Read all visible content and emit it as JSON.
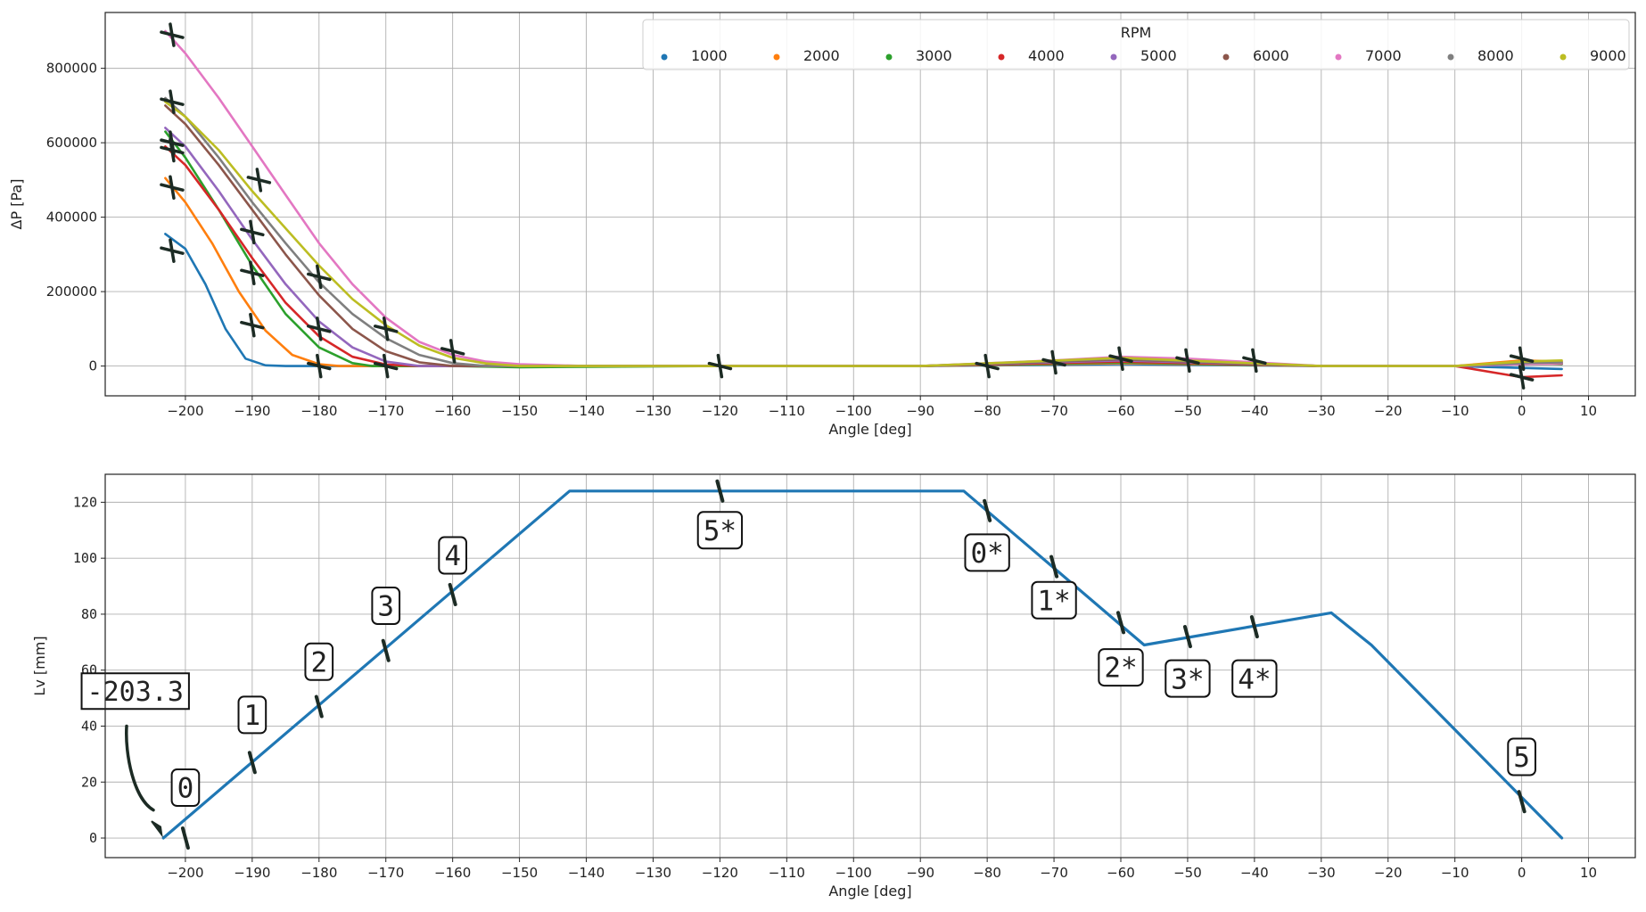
{
  "chart_data": [
    {
      "type": "line",
      "xlabel": "Angle [deg]",
      "ylabel": "ΔP [Pa]",
      "xlim": [
        -212,
        17
      ],
      "ylim": [
        -80000,
        950000
      ],
      "x_ticks": [
        -200,
        -190,
        -180,
        -170,
        -160,
        -150,
        -140,
        -130,
        -120,
        -110,
        -100,
        -90,
        -80,
        -70,
        -60,
        -50,
        -40,
        -30,
        -20,
        -10,
        0,
        10
      ],
      "x_tick_labels": [
        "−200",
        "−190",
        "−180",
        "−170",
        "−160",
        "−150",
        "−140",
        "−130",
        "−120",
        "−110",
        "−100",
        "−90",
        "−80",
        "−70",
        "−60",
        "−50",
        "−40",
        "−30",
        "−20",
        "−10",
        "0",
        "10"
      ],
      "y_ticks": [
        0,
        200000,
        400000,
        600000,
        800000
      ],
      "y_tick_labels": [
        "0",
        "200000",
        "400000",
        "600000",
        "800000"
      ],
      "grid": true,
      "legend": {
        "title": "RPM",
        "placement": "top-right"
      },
      "series": [
        {
          "name": "1000",
          "color": "#1f77b4",
          "x": [
            -203,
            -200,
            -197,
            -194,
            -191,
            -188,
            -185,
            -180,
            -150,
            -120,
            -90,
            -60,
            -30,
            -10,
            0,
            6
          ],
          "y": [
            355000,
            315000,
            220000,
            100000,
            20000,
            2000,
            0,
            0,
            0,
            0,
            0,
            5000,
            0,
            0,
            -5000,
            -8000
          ]
        },
        {
          "name": "2000",
          "color": "#ff7f0e",
          "x": [
            -203,
            -200,
            -196,
            -192,
            -188,
            -184,
            -180,
            -177,
            -170,
            -150,
            -120,
            -90,
            -60,
            -30,
            -10,
            0,
            6
          ],
          "y": [
            505000,
            440000,
            330000,
            200000,
            95000,
            30000,
            5000,
            0,
            0,
            0,
            0,
            0,
            8000,
            0,
            0,
            15000,
            12000
          ]
        },
        {
          "name": "3000",
          "color": "#2ca02c",
          "x": [
            -203,
            -200,
            -195,
            -190,
            -185,
            -180,
            -175,
            -172,
            -160,
            -150,
            -120,
            -90,
            -60,
            -30,
            -10,
            0,
            6
          ],
          "y": [
            630000,
            560000,
            420000,
            270000,
            140000,
            50000,
            8000,
            0,
            0,
            -3000,
            0,
            0,
            10000,
            0,
            0,
            8000,
            5000
          ]
        },
        {
          "name": "4000",
          "color": "#d62728",
          "x": [
            -203,
            -200,
            -195,
            -190,
            -185,
            -180,
            -175,
            -170,
            -165,
            -160,
            -150,
            -120,
            -90,
            -60,
            -30,
            -10,
            0,
            6
          ],
          "y": [
            590000,
            540000,
            420000,
            290000,
            170000,
            80000,
            25000,
            4000,
            0,
            0,
            0,
            0,
            0,
            12000,
            0,
            0,
            -30000,
            -25000
          ]
        },
        {
          "name": "5000",
          "color": "#9467bd",
          "x": [
            -203,
            -200,
            -195,
            -190,
            -185,
            -180,
            -175,
            -170,
            -165,
            -160,
            -150,
            -120,
            -90,
            -60,
            -30,
            -10,
            0,
            6
          ],
          "y": [
            640000,
            590000,
            470000,
            340000,
            220000,
            120000,
            50000,
            12000,
            0,
            0,
            0,
            0,
            0,
            15000,
            0,
            0,
            5000,
            8000
          ]
        },
        {
          "name": "6000",
          "color": "#8c564b",
          "x": [
            -203,
            -200,
            -195,
            -190,
            -185,
            -180,
            -175,
            -170,
            -165,
            -160,
            -150,
            -120,
            -90,
            -60,
            -30,
            -10,
            0,
            6
          ],
          "y": [
            700000,
            650000,
            540000,
            420000,
            300000,
            190000,
            100000,
            40000,
            10000,
            0,
            0,
            0,
            0,
            18000,
            0,
            0,
            5000,
            6000
          ]
        },
        {
          "name": "7000",
          "color": "#e377c2",
          "x": [
            -203,
            -200,
            -195,
            -190,
            -185,
            -180,
            -175,
            -170,
            -165,
            -160,
            -155,
            -150,
            -140,
            -120,
            -90,
            -70,
            -60,
            -50,
            -30,
            -10,
            0,
            6
          ],
          "y": [
            900000,
            840000,
            720000,
            590000,
            460000,
            330000,
            220000,
            130000,
            65000,
            30000,
            12000,
            5000,
            0,
            0,
            0,
            15000,
            25000,
            20000,
            0,
            0,
            5000,
            8000
          ]
        },
        {
          "name": "8000",
          "color": "#7f7f7f",
          "x": [
            -203,
            -200,
            -195,
            -190,
            -185,
            -180,
            -175,
            -170,
            -165,
            -160,
            -155,
            -150,
            -120,
            -90,
            -60,
            -30,
            -10,
            0,
            6
          ],
          "y": [
            720000,
            670000,
            560000,
            440000,
            330000,
            225000,
            140000,
            75000,
            30000,
            8000,
            0,
            0,
            0,
            0,
            20000,
            0,
            0,
            8000,
            10000
          ]
        },
        {
          "name": "9000",
          "color": "#bcbd22",
          "x": [
            -203,
            -200,
            -195,
            -190,
            -185,
            -180,
            -175,
            -170,
            -165,
            -160,
            -155,
            -150,
            -140,
            -120,
            -90,
            -60,
            -30,
            -10,
            0,
            6
          ],
          "y": [
            710000,
            670000,
            580000,
            470000,
            370000,
            270000,
            180000,
            110000,
            55000,
            22000,
            7000,
            0,
            0,
            0,
            0,
            22000,
            0,
            0,
            12000,
            15000
          ]
        }
      ]
    },
    {
      "type": "line",
      "xlabel": "Angle [deg]",
      "ylabel": "Lv [mm]",
      "xlim": [
        -212,
        17
      ],
      "ylim": [
        -7,
        130
      ],
      "x_ticks": [
        -200,
        -190,
        -180,
        -170,
        -160,
        -150,
        -140,
        -130,
        -120,
        -110,
        -100,
        -90,
        -80,
        -70,
        -60,
        -50,
        -40,
        -30,
        -20,
        -10,
        0,
        10
      ],
      "x_tick_labels": [
        "−200",
        "−190",
        "−180",
        "−170",
        "−160",
        "−150",
        "−140",
        "−130",
        "−120",
        "−110",
        "−100",
        "−90",
        "−80",
        "−70",
        "−60",
        "−50",
        "−40",
        "−30",
        "−20",
        "−10",
        "0",
        "10"
      ],
      "y_ticks": [
        0,
        20,
        40,
        60,
        80,
        100,
        120
      ],
      "y_tick_labels": [
        "0",
        "20",
        "40",
        "60",
        "80",
        "100",
        "120"
      ],
      "grid": true,
      "series": [
        {
          "color": "#1f77b4",
          "x": [
            -203.3,
            -142.5,
            -83.5,
            -56.5,
            -28.5,
            -22.5,
            6
          ],
          "y": [
            0,
            124,
            124,
            69,
            80.5,
            69,
            0
          ]
        }
      ],
      "annotations": [
        {
          "text": "-203.3",
          "x": -203.3,
          "y": 0
        },
        {
          "text": "0",
          "x": -200,
          "y": 18
        },
        {
          "text": "1",
          "x": -190,
          "y": 44
        },
        {
          "text": "2",
          "x": -180,
          "y": 63
        },
        {
          "text": "3",
          "x": -170,
          "y": 83
        },
        {
          "text": "4",
          "x": -160,
          "y": 101
        },
        {
          "text": "5*",
          "x": -120,
          "y": 110
        },
        {
          "text": "0*",
          "x": -80,
          "y": 102
        },
        {
          "text": "1*",
          "x": -70,
          "y": 85
        },
        {
          "text": "2*",
          "x": -60,
          "y": 61
        },
        {
          "text": "3*",
          "x": -50,
          "y": 57
        },
        {
          "text": "4*",
          "x": -40,
          "y": 57
        },
        {
          "text": "5",
          "x": 0,
          "y": 29
        }
      ]
    }
  ]
}
